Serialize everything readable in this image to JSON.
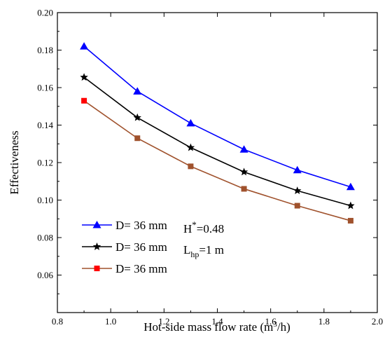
{
  "chart_data": {
    "type": "line",
    "title": "",
    "xlabel": "Hot-side mass flow rate (m",
    "xlabel_sup": "3",
    "xlabel_tail": "/h)",
    "ylabel": "Effectiveness",
    "xlim": [
      0.8,
      2.0
    ],
    "ylim": [
      0.04,
      0.2
    ],
    "xticks": [
      "0.8",
      "1.0",
      "1.2",
      "1.4",
      "1.6",
      "1.8",
      "2.0"
    ],
    "xtick_values": [
      0.8,
      1.0,
      1.2,
      1.4,
      1.6,
      1.8,
      2.0
    ],
    "yticks": [
      "0.06",
      "0.08",
      "0.10",
      "0.12",
      "0.14",
      "0.16",
      "0.18",
      "0.20"
    ],
    "ytick_values": [
      0.06,
      0.08,
      0.1,
      0.12,
      0.14,
      0.16,
      0.18,
      0.2
    ],
    "grid": false,
    "legend_position": "bottom-left",
    "x": [
      0.9,
      1.1,
      1.3,
      1.5,
      1.7,
      1.9
    ],
    "series": [
      {
        "name": "D= 36 mm",
        "marker": "triangle",
        "color": "#0000ff",
        "values": [
          0.182,
          0.158,
          0.141,
          0.127,
          0.116,
          0.107
        ]
      },
      {
        "name": "D= 36 mm",
        "marker": "star",
        "color": "#000000",
        "values": [
          0.1655,
          0.144,
          0.128,
          0.115,
          0.105,
          0.097
        ]
      },
      {
        "name": "D= 36 mm",
        "marker": "square",
        "color": "#ff0000",
        "line_color": "#a0522d",
        "values": [
          0.153,
          0.133,
          0.118,
          0.106,
          0.097,
          0.089
        ]
      }
    ],
    "annotations": {
      "h_label": "H",
      "h_sup": "*",
      "h_value": "=0.48",
      "l_label": "L",
      "l_sub": "hp",
      "l_value": "=1 m"
    }
  }
}
